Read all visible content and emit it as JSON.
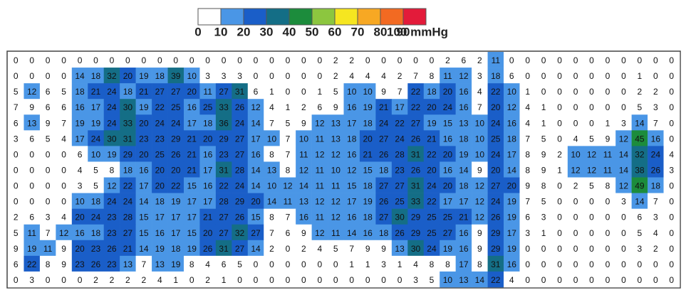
{
  "chart_data": {
    "type": "heatmap",
    "colorbar": {
      "ticks": [
        0,
        10,
        20,
        30,
        40,
        50,
        60,
        70,
        80,
        90,
        {
          "value": 100,
          "label": "100 mmHg"
        }
      ],
      "colors": [
        "#ffffff",
        "#4a96e6",
        "#1a5ec8",
        "#146e86",
        "#1c8c3c",
        "#8cc63f",
        "#f6e620",
        "#f7a823",
        "#f26a22",
        "#e31b3a"
      ]
    },
    "rows": [
      [
        0,
        0,
        0,
        0,
        0,
        0,
        0,
        0,
        0,
        0,
        0,
        0,
        0,
        0,
        0,
        0,
        0,
        0,
        0,
        0,
        2,
        2,
        0,
        0,
        0,
        0,
        0,
        2,
        6,
        2,
        11,
        0,
        0,
        0,
        0,
        0,
        0,
        0,
        0,
        0,
        0,
        0
      ],
      [
        0,
        0,
        0,
        0,
        14,
        18,
        32,
        20,
        19,
        18,
        39,
        10,
        3,
        3,
        3,
        0,
        0,
        0,
        0,
        0,
        2,
        4,
        4,
        4,
        2,
        7,
        8,
        11,
        12,
        3,
        18,
        6,
        0,
        0,
        0,
        0,
        0,
        0,
        0,
        1,
        0,
        0
      ],
      [
        5,
        12,
        6,
        5,
        18,
        21,
        24,
        18,
        21,
        27,
        27,
        20,
        11,
        27,
        31,
        6,
        1,
        0,
        0,
        1,
        5,
        10,
        10,
        9,
        7,
        22,
        18,
        20,
        16,
        4,
        22,
        10,
        1,
        0,
        0,
        0,
        0,
        0,
        0,
        2,
        2,
        0
      ],
      [
        7,
        9,
        6,
        6,
        16,
        17,
        24,
        30,
        19,
        22,
        25,
        16,
        25,
        33,
        26,
        12,
        4,
        1,
        2,
        6,
        9,
        16,
        19,
        21,
        17,
        22,
        20,
        24,
        16,
        7,
        20,
        12,
        4,
        1,
        0,
        0,
        0,
        0,
        0,
        5,
        3,
        0
      ],
      [
        6,
        13,
        9,
        7,
        19,
        19,
        24,
        33,
        20,
        24,
        24,
        17,
        18,
        36,
        24,
        14,
        7,
        5,
        9,
        12,
        13,
        17,
        18,
        24,
        22,
        27,
        19,
        15,
        13,
        10,
        24,
        16,
        4,
        1,
        0,
        0,
        0,
        1,
        3,
        14,
        7,
        0
      ],
      [
        3,
        6,
        5,
        4,
        17,
        24,
        30,
        31,
        23,
        23,
        29,
        21,
        20,
        29,
        27,
        17,
        10,
        7,
        10,
        11,
        13,
        18,
        20,
        27,
        24,
        26,
        21,
        16,
        18,
        10,
        25,
        18,
        7,
        5,
        0,
        4,
        5,
        9,
        12,
        45,
        16,
        0
      ],
      [
        0,
        0,
        0,
        0,
        6,
        10,
        19,
        29,
        20,
        25,
        26,
        21,
        16,
        23,
        27,
        16,
        8,
        7,
        11,
        12,
        12,
        16,
        21,
        26,
        28,
        31,
        22,
        20,
        19,
        10,
        24,
        17,
        8,
        9,
        2,
        10,
        12,
        11,
        14,
        32,
        24,
        4
      ],
      [
        0,
        0,
        0,
        0,
        4,
        5,
        8,
        18,
        16,
        20,
        20,
        21,
        17,
        31,
        28,
        14,
        13,
        8,
        12,
        11,
        10,
        12,
        15,
        18,
        23,
        26,
        20,
        16,
        14,
        9,
        20,
        14,
        8,
        9,
        1,
        12,
        12,
        11,
        14,
        38,
        26,
        3
      ],
      [
        0,
        0,
        0,
        0,
        3,
        5,
        12,
        22,
        17,
        20,
        22,
        15,
        16,
        22,
        24,
        14,
        10,
        12,
        14,
        11,
        11,
        15,
        18,
        27,
        27,
        31,
        24,
        20,
        18,
        12,
        27,
        20,
        9,
        8,
        0,
        2,
        5,
        8,
        12,
        49,
        18,
        0
      ],
      [
        0,
        0,
        0,
        0,
        10,
        18,
        24,
        24,
        14,
        18,
        19,
        17,
        17,
        28,
        29,
        20,
        14,
        11,
        13,
        12,
        12,
        17,
        19,
        26,
        25,
        33,
        22,
        17,
        17,
        12,
        24,
        19,
        7,
        5,
        0,
        0,
        0,
        0,
        3,
        14,
        7,
        0
      ],
      [
        2,
        6,
        3,
        4,
        20,
        24,
        23,
        28,
        15,
        17,
        17,
        17,
        21,
        27,
        26,
        15,
        8,
        7,
        16,
        11,
        12,
        16,
        18,
        27,
        30,
        29,
        25,
        25,
        21,
        12,
        26,
        19,
        6,
        3,
        0,
        0,
        0,
        0,
        0,
        6,
        3,
        0
      ],
      [
        5,
        11,
        7,
        12,
        16,
        18,
        23,
        27,
        15,
        16,
        17,
        15,
        20,
        27,
        32,
        27,
        7,
        6,
        9,
        12,
        11,
        14,
        16,
        18,
        26,
        29,
        25,
        27,
        16,
        9,
        29,
        17,
        3,
        1,
        0,
        0,
        0,
        0,
        0,
        5,
        4,
        0
      ],
      [
        9,
        19,
        11,
        9,
        20,
        23,
        26,
        21,
        14,
        19,
        18,
        19,
        26,
        31,
        27,
        14,
        2,
        0,
        2,
        4,
        5,
        7,
        9,
        9,
        13,
        30,
        24,
        19,
        16,
        9,
        29,
        19,
        0,
        0,
        0,
        0,
        0,
        0,
        0,
        3,
        2,
        0
      ],
      [
        6,
        22,
        8,
        9,
        23,
        26,
        23,
        13,
        7,
        13,
        19,
        8,
        4,
        6,
        5,
        0,
        0,
        0,
        0,
        0,
        0,
        1,
        1,
        3,
        1,
        4,
        8,
        8,
        17,
        8,
        31,
        16,
        0,
        0,
        0,
        0,
        0,
        0,
        0,
        0,
        0,
        0
      ],
      [
        0,
        3,
        0,
        0,
        0,
        2,
        2,
        2,
        2,
        4,
        1,
        0,
        2,
        1,
        0,
        0,
        0,
        0,
        0,
        0,
        0,
        0,
        0,
        0,
        0,
        3,
        5,
        10,
        13,
        14,
        22,
        4,
        0,
        0,
        0,
        0,
        0,
        0,
        0,
        0,
        0,
        0
      ]
    ]
  }
}
